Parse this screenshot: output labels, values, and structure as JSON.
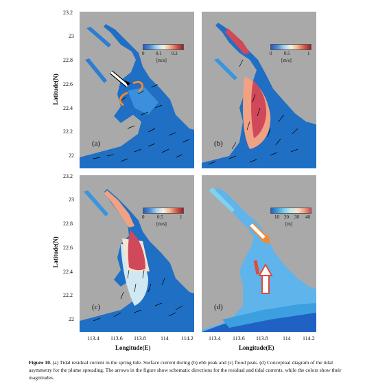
{
  "figure": {
    "axes": {
      "ylabel": "Latitude(N)",
      "xlabel": "Longitude(E)",
      "yticks": [
        "23.2",
        "23",
        "22.8",
        "22.6",
        "22.4",
        "22.2",
        "22"
      ],
      "xticks": [
        "113.4",
        "113.6",
        "113.8",
        "114",
        "114.2"
      ]
    },
    "panels": [
      {
        "label": "(a)",
        "colorbar": {
          "ticks": [
            "0",
            "0.1",
            "0.2"
          ],
          "unit": "[m/s]"
        }
      },
      {
        "label": "(b)",
        "colorbar": {
          "ticks": [
            "0",
            "0.5",
            "1"
          ],
          "unit": "[m/s]"
        }
      },
      {
        "label": "(c)",
        "colorbar": {
          "ticks": [
            "0",
            "0.5",
            "1"
          ],
          "unit": "[m/s]"
        }
      },
      {
        "label": "(d)",
        "colorbar": {
          "ticks": [
            "10",
            "20",
            "30",
            "40"
          ],
          "unit": "[m]"
        }
      }
    ]
  },
  "caption": {
    "label": "Figure 10.",
    "text": " (a) Tidal residual current in the spring tide. Surface current during (b) ebb peak and (c) flood peak. (d) Conceptual diagram of the tidal asymmetry for the plume spreading. The arrows in the figure show schematic directions for the residual and tidal currents, while the colors show their magnitudes."
  },
  "colors": {
    "land": "#a9a9a9",
    "sea": "#1f6fc4",
    "arrow_orange": "#f08a30",
    "arrow_red": "#e04b3a"
  }
}
